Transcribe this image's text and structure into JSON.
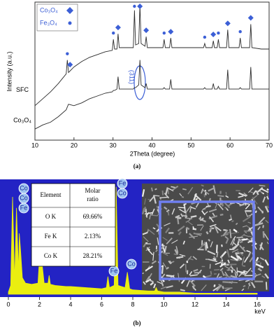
{
  "chart_data": [
    {
      "type": "line",
      "xlabel": "2Theta (degree)",
      "ylabel": "Intensity (a.u.)",
      "xlim": [
        10,
        70
      ],
      "xticks": [
        10,
        20,
        30,
        40,
        50,
        60,
        70
      ],
      "ylim": [
        0,
        100
      ],
      "x": [
        10,
        12,
        14,
        16,
        18,
        18.3,
        18.6,
        20,
        22,
        24,
        26,
        28,
        29.8,
        30.1,
        30.4,
        31,
        31.3,
        31.6,
        33,
        35.2,
        35.5,
        35.8,
        36.6,
        36.9,
        37.2,
        38.2,
        38.5,
        38.8,
        40,
        42.8,
        43.1,
        43.4,
        44.5,
        44.8,
        45.1,
        48,
        52,
        53.2,
        53.5,
        53.8,
        55.4,
        55.7,
        56,
        56.7,
        57,
        57.3,
        59.1,
        59.4,
        59.7,
        62.3,
        62.6,
        62.9,
        65,
        65.3,
        65.6,
        68,
        70
      ],
      "series": [
        {
          "name": "SFC",
          "color": "#2a2a2a",
          "values": [
            25,
            30,
            35,
            41,
            48,
            58,
            49,
            53,
            57,
            60,
            62,
            64,
            65,
            73,
            66,
            66,
            77,
            67,
            67,
            67,
            94,
            69,
            70,
            98,
            70,
            68,
            75,
            67,
            67,
            67,
            73,
            67,
            67,
            74,
            67,
            67,
            67,
            67,
            70,
            67,
            67,
            72,
            67,
            67,
            73,
            67,
            67,
            80,
            67,
            67,
            74,
            67,
            67,
            84,
            67,
            66,
            66
          ]
        },
        {
          "name": "Co₃O₄",
          "color": "#2a2a2a",
          "values": [
            8,
            11,
            13,
            17,
            22,
            24,
            26,
            25,
            27,
            30,
            32,
            34,
            35,
            36,
            36,
            37,
            46,
            37,
            37,
            37,
            38,
            38,
            40,
            58,
            40,
            38,
            41,
            37,
            37,
            37,
            38,
            37,
            37,
            44,
            37,
            37,
            37,
            37,
            38,
            37,
            37,
            41,
            37,
            37,
            39,
            37,
            37,
            51,
            37,
            37,
            38,
            37,
            37,
            53,
            37,
            37,
            37
          ]
        }
      ],
      "peak_markers": [
        {
          "name": "Co₃O₄",
          "shape": "diamond",
          "color": "#3c5fd6",
          "x": [
            19,
            31.3,
            36.9,
            38.5,
            44.8,
            55.7,
            59.4,
            65.3
          ]
        },
        {
          "name": "Fe₃O₄",
          "shape": "circle",
          "color": "#3c5fd6",
          "x": [
            18.3,
            30.1,
            35.5,
            43.1,
            53.5,
            57,
            62.6
          ]
        }
      ],
      "annotation": "(311)",
      "panel_label": "(a)"
    },
    {
      "type": "area",
      "xlabel": "keV",
      "xlim": [
        0,
        16
      ],
      "xticks": [
        0,
        2,
        4,
        6,
        8,
        10,
        12,
        14,
        16
      ],
      "ylim": [
        0,
        100
      ],
      "color": "#eaee10",
      "background": "#2323c4",
      "x": [
        0,
        0.15,
        0.27,
        0.4,
        0.52,
        0.65,
        0.7,
        0.78,
        0.9,
        1.1,
        1.5,
        1.9,
        2.05,
        2.15,
        2.3,
        2.55,
        2.62,
        2.7,
        3,
        3.7,
        4,
        5,
        6,
        6.3,
        6.4,
        6.5,
        6.8,
        6.93,
        7.05,
        7.5,
        7.65,
        7.8,
        8,
        9,
        9.4,
        9.5,
        9.6,
        10,
        11,
        12,
        13,
        14,
        16
      ],
      "values": [
        2,
        8,
        88,
        12,
        78,
        20,
        55,
        40,
        15,
        10,
        9,
        10,
        45,
        30,
        10,
        10,
        17,
        9,
        8,
        7,
        7,
        6,
        5,
        6,
        16,
        6,
        8,
        97,
        8,
        6,
        20,
        5,
        4,
        3,
        3,
        6,
        3,
        2,
        2,
        1,
        1,
        1,
        1
      ],
      "peak_labels": [
        "Co",
        "Co",
        "Fe",
        "Fe",
        "Co",
        "Fe",
        "Co"
      ],
      "table": {
        "header": [
          "Element",
          "Molar ratio"
        ],
        "rows": [
          [
            "O K",
            "69.66%"
          ],
          [
            "Fe K",
            "2.13%"
          ],
          [
            "Co K",
            "28.21%"
          ]
        ]
      },
      "panel_label": "(b)"
    }
  ]
}
